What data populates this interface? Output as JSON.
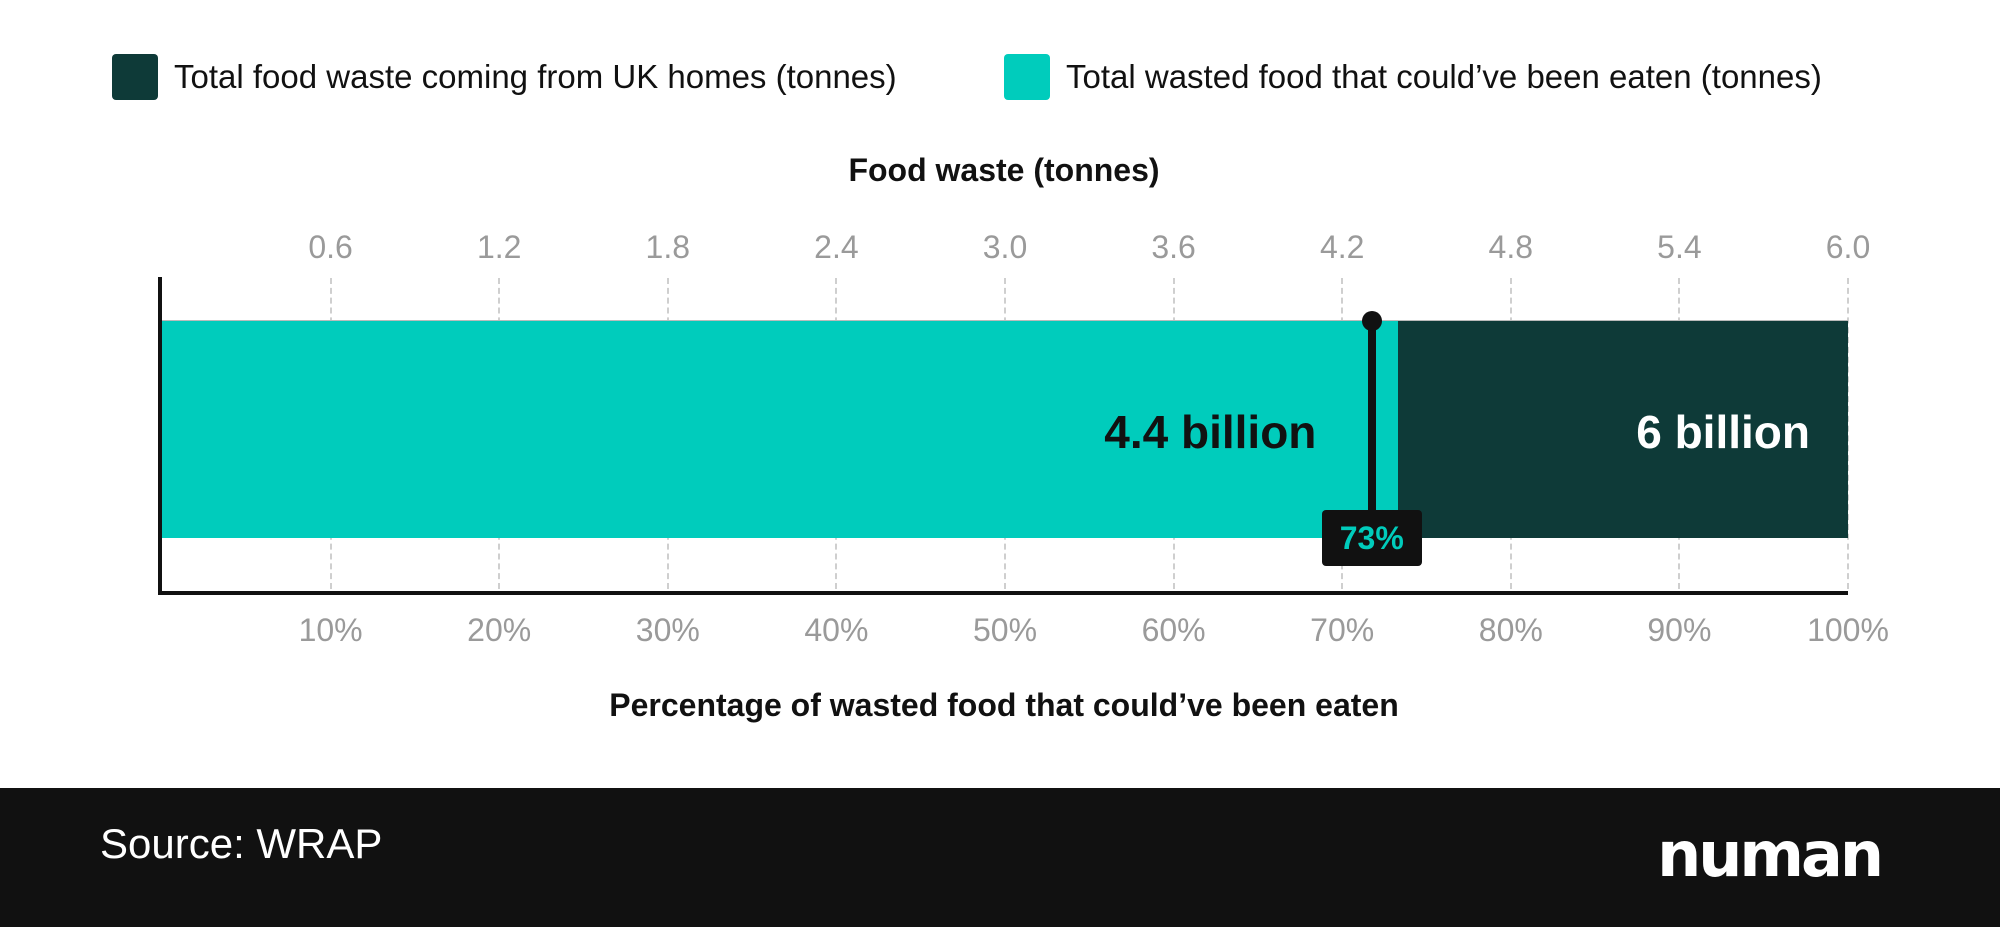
{
  "legend": [
    {
      "label": "Total food waste coming from UK homes (tonnes)",
      "color": "#0E3A38"
    },
    {
      "label": "Total wasted food that could’ve been eaten (tonnes)",
      "color": "#00CCBC"
    }
  ],
  "chart_data": {
    "type": "bar",
    "orientation": "horizontal",
    "stacked": "overlay",
    "series": [
      {
        "name": "Total food waste coming from UK homes (tonnes)",
        "value": 6.0,
        "label": "6 billion",
        "color": "#0E3A38"
      },
      {
        "name": "Total wasted food that could’ve been eaten (tonnes)",
        "value": 4.4,
        "label": "4.4 billion",
        "color": "#00CCBC"
      }
    ],
    "top_axis": {
      "title": "Food waste (tonnes)",
      "ticks": [
        "0.6",
        "1.2",
        "1.8",
        "2.4",
        "3.0",
        "3.6",
        "4.2",
        "4.8",
        "5.4",
        "6.0"
      ],
      "range": [
        0,
        6.0
      ]
    },
    "bottom_axis": {
      "title": "Percentage of wasted food that could’ve been eaten",
      "ticks": [
        "10%",
        "20%",
        "30%",
        "40%",
        "50%",
        "60%",
        "70%",
        "80%",
        "90%",
        "100%"
      ],
      "range": [
        0,
        100
      ]
    },
    "annotation": {
      "label": "73%",
      "value": 73
    },
    "grid": "vertical dashed",
    "legend_position": "top"
  },
  "footer": {
    "source": "Source: WRAP",
    "logo": "numan"
  }
}
